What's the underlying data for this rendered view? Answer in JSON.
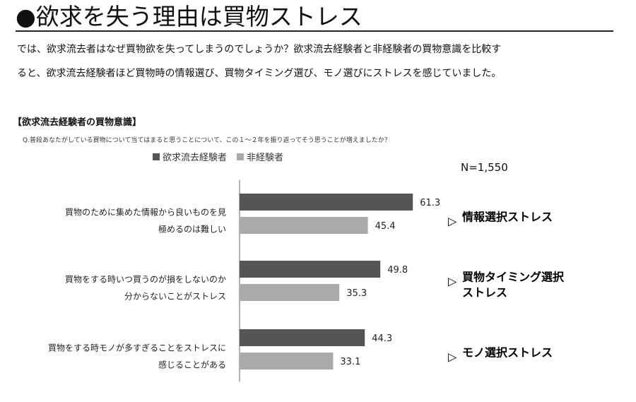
{
  "headline": "●欲求を失う理由は買物ストレス",
  "lead": [
    "では、欲求流去者はなぜ買物欲を失ってしまうのでしょうか？欲求流去経験者と非経験者の買物意識を比較す",
    "ると、欲求流去経験者ほど買物時の情報選び、買物タイミング選び、モノ選びにストレスを感じていました。"
  ],
  "colors": {
    "experienced": "#555555",
    "non_experienced": "#aaaaaa",
    "axis": "#666666"
  },
  "chart_data": {
    "type": "bar",
    "orientation": "horizontal",
    "title": "【欲求流去経験者の買物意識】",
    "question": "Q.普段あなたがしている買物について当てはまると思うことについて、この１～２年を振り返ってそう思うことが増えましたか？",
    "sample_size": "N=1,550",
    "legend": {
      "placement": "top",
      "entries": [
        "欲求流去経験者",
        "非経験者"
      ]
    },
    "categories": [
      [
        "買物のために集めた情報から良いものを見",
        "極めるのは難しい"
      ],
      [
        "買物をする時いつ買うのが損をしないのか",
        "分からないことがストレス"
      ],
      [
        "買物をする時モノが多すぎることをストレスに",
        "感じることがある"
      ]
    ],
    "series": [
      {
        "name": "欲求流去経験者",
        "values": [
          61.3,
          49.8,
          44.3
        ],
        "labels": [
          "61.3",
          "49.8",
          "44.3"
        ]
      },
      {
        "name": "非経験者",
        "values": [
          45.4,
          35.3,
          33.1
        ],
        "labels": [
          "45.4",
          "35.3",
          "33.1"
        ]
      }
    ],
    "xlim": [
      0,
      100
    ],
    "annotations": [
      [
        "情報選択ストレス"
      ],
      [
        "買物タイミング選択",
        "ストレス"
      ],
      [
        "モノ選択ストレス"
      ]
    ],
    "annotation_marker": "▷"
  }
}
